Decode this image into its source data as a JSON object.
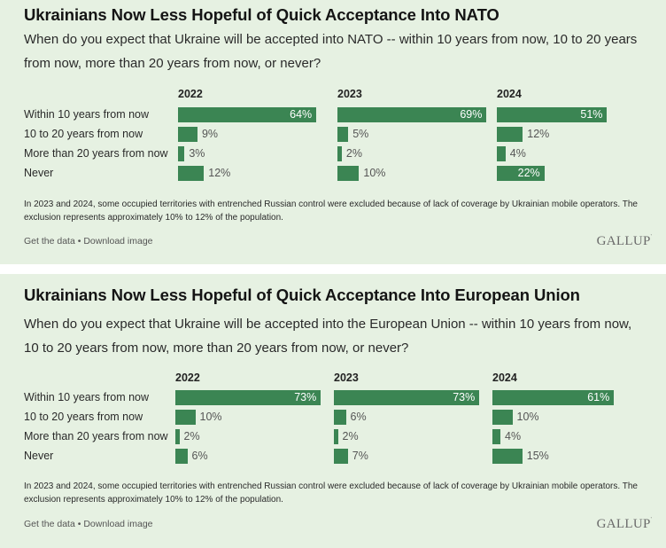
{
  "charts": [
    {
      "title": "Ukrainians Now Less Hopeful of Quick Acceptance Into NATO",
      "question": "When do you expect that Ukraine will be accepted into NATO -- within 10 years from now, 10 to 20 years from now, more than 20 years from now, or never?",
      "note": "In 2023 and 2024, some occupied territories with entrenched Russian control were excluded because of lack of coverage by Ukrainian mobile operators. The exclusion represents approximately 10% to 12% of the population.",
      "links": {
        "get_data": "Get the data",
        "separator": " • ",
        "download": "Download image"
      },
      "logo": "GALLUP",
      "logo_mark": "'"
    },
    {
      "title": "Ukrainians Now Less Hopeful of Quick Acceptance Into European Union",
      "question": "When do you expect that Ukraine will be accepted into the European Union -- within 10 years from now, 10 to 20 years from now, more than 20 years from now, or never?",
      "note": "In 2023 and 2024, some occupied territories with entrenched Russian control were excluded because of lack of coverage by Ukrainian mobile operators. The exclusion represents approximately 10% to 12% of the population.",
      "links": {
        "get_data": "Get the data",
        "separator": " • ",
        "download": "Download image"
      },
      "logo": "GALLUP",
      "logo_mark": "'"
    }
  ],
  "colors": {
    "bar": "#3b8553",
    "panel_bg": "#e6f1e2"
  },
  "chart_data": [
    {
      "type": "bar",
      "orientation": "horizontal",
      "title": "Ukrainians Now Less Hopeful of Quick Acceptance Into NATO",
      "categories": [
        "Within 10 years from now",
        "10 to 20 years from now",
        "More than 20 years from now",
        "Never"
      ],
      "series": [
        {
          "name": "2022",
          "values": [
            64,
            9,
            3,
            12
          ]
        },
        {
          "name": "2023",
          "values": [
            69,
            5,
            2,
            10
          ]
        },
        {
          "name": "2024",
          "values": [
            51,
            12,
            4,
            22
          ]
        }
      ],
      "unit": "%",
      "xlabel": "",
      "ylabel": "",
      "xlim": [
        0,
        70
      ],
      "grid": false,
      "legend": "none"
    },
    {
      "type": "bar",
      "orientation": "horizontal",
      "title": "Ukrainians Now Less Hopeful of Quick Acceptance Into European Union",
      "categories": [
        "Within 10 years from now",
        "10 to 20 years from now",
        "More than 20 years from now",
        "Never"
      ],
      "series": [
        {
          "name": "2022",
          "values": [
            73,
            10,
            2,
            6
          ]
        },
        {
          "name": "2023",
          "values": [
            73,
            6,
            2,
            7
          ]
        },
        {
          "name": "2024",
          "values": [
            61,
            10,
            4,
            15
          ]
        }
      ],
      "unit": "%",
      "xlabel": "",
      "ylabel": "",
      "xlim": [
        0,
        75
      ],
      "grid": false,
      "legend": "none"
    }
  ]
}
